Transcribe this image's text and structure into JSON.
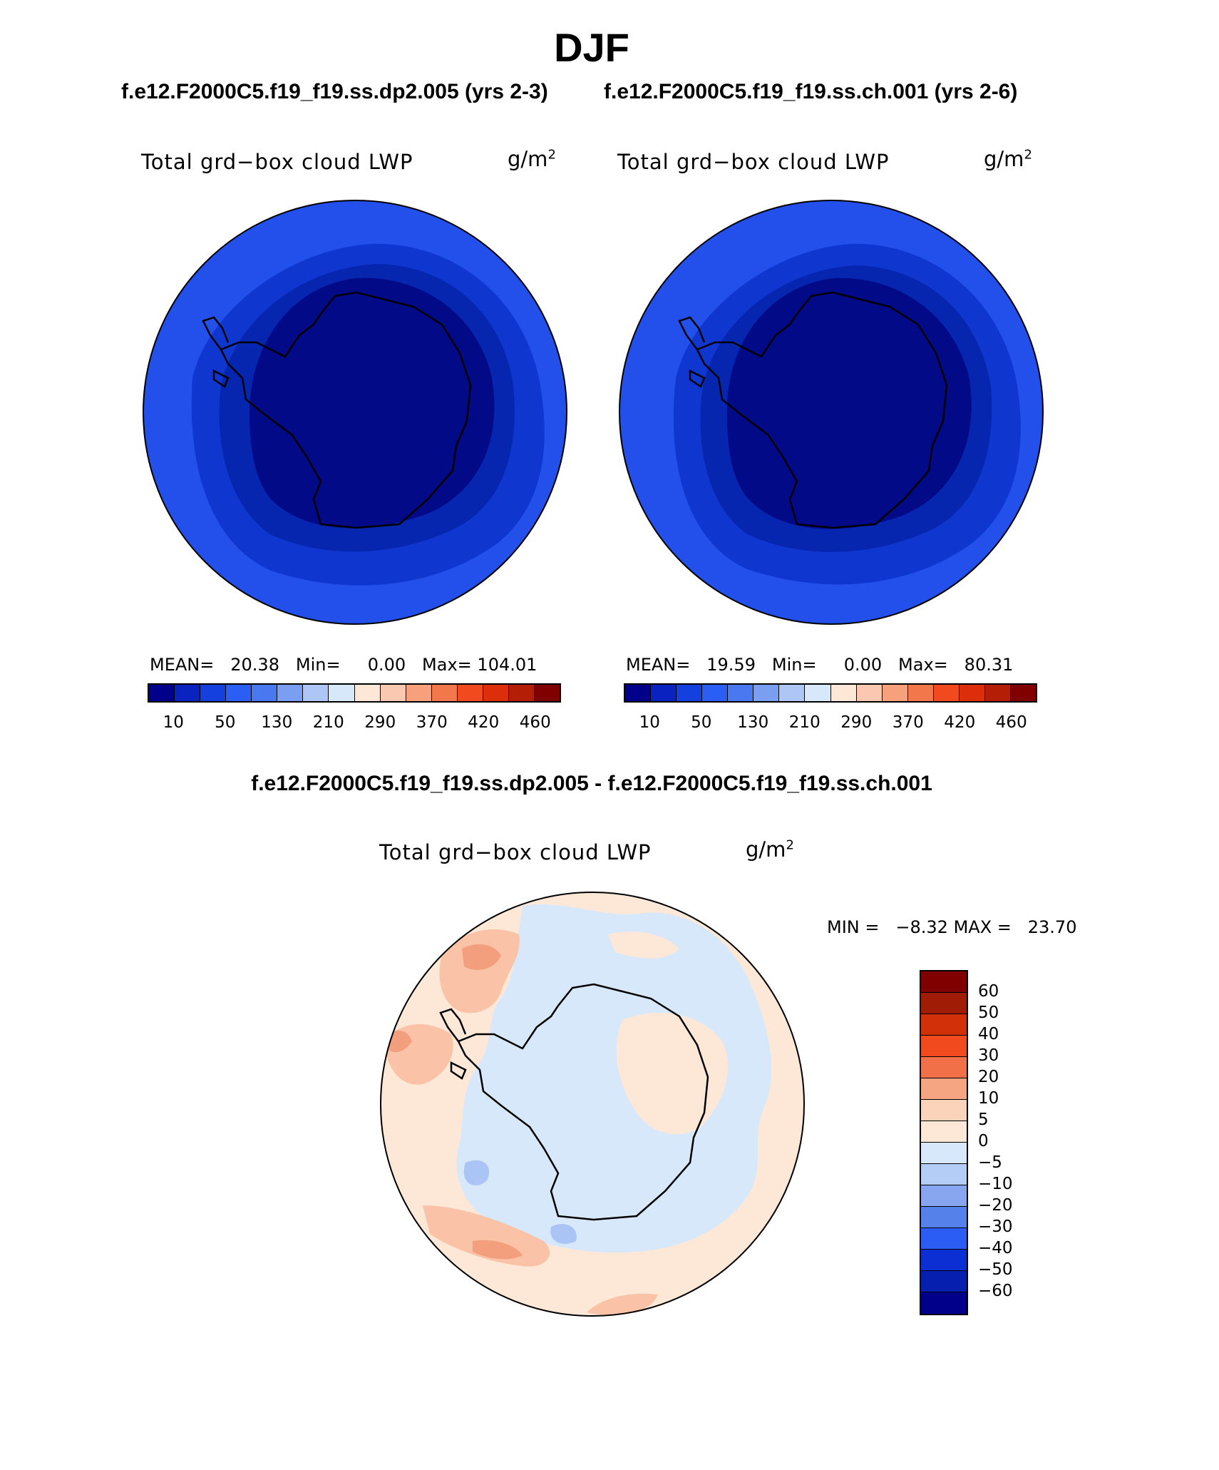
{
  "title": "DJF",
  "subtitles": {
    "left": "f.e12.F2000C5.f19_f19.ss.dp2.005 (yrs 2-3)",
    "right": "f.e12.F2000C5.f19_f19.ss.ch.001 (yrs 2-6)"
  },
  "diff_title": "f.e12.F2000C5.f19_f19.ss.dp2.005 - f.e12.F2000C5.f19_f19.ss.ch.001",
  "panels": [
    {
      "label": "Total grd−box cloud LWP",
      "units": "g/m",
      "units_sup": "2",
      "stats": {
        "mean_label": "MEAN=",
        "mean": "20.38",
        "min_label": "Min=",
        "min": "0.00",
        "max_label": "Max=",
        "max": "104.01"
      }
    },
    {
      "label": "Total grd−box cloud LWP",
      "units": "g/m",
      "units_sup": "2",
      "stats": {
        "mean_label": "MEAN=",
        "mean": "19.59",
        "min_label": "Min=",
        "min": "0.00",
        "max_label": "Max=",
        "max": "80.31"
      }
    },
    {
      "label": "Total grd−box cloud LWP",
      "units": "g/m",
      "units_sup": "2",
      "stats": {
        "min_label": "MIN =",
        "min": "−8.32",
        "max_label": "MAX =",
        "max": "23.70"
      }
    }
  ],
  "abs_colorbar": {
    "colors": [
      "#00008b",
      "#0a23c0",
      "#1540e0",
      "#2a5ef5",
      "#4a78f0",
      "#7a9ef2",
      "#aec6f6",
      "#d7e8fb",
      "#fde8d8",
      "#fac8b0",
      "#f6a07c",
      "#f2784c",
      "#f04a1e",
      "#dc2e0a",
      "#b41e06",
      "#800000"
    ],
    "ticks": [
      "10",
      "50",
      "130",
      "210",
      "290",
      "370",
      "420",
      "460"
    ]
  },
  "diff_colorbar": {
    "colors": [
      "#800000",
      "#a01c04",
      "#d23008",
      "#f04a1e",
      "#f27048",
      "#f5a582",
      "#fbd2ba",
      "#fde8d8",
      "#d7e8fb",
      "#b4cdf6",
      "#88a6ef",
      "#5582ea",
      "#2b5df5",
      "#0c2fd3",
      "#061fae",
      "#00008b"
    ],
    "ticks": [
      "60",
      "50",
      "40",
      "30",
      "20",
      "10",
      "5",
      "0",
      "−5",
      "−10",
      "−20",
      "−30",
      "−40",
      "−50",
      "−60"
    ]
  },
  "map_colors": {
    "abs_outer": "#2350ea",
    "abs_band": "#0f37d0",
    "abs_mid": "#0626b0",
    "abs_inner": "#030a88",
    "diff_pos_light": "#fde8d8",
    "diff_neg_light": "#d7e8fb",
    "diff_pos_mid": "#fac2a6",
    "diff_pos_strong": "#f39f7e",
    "diff_neg_mid": "#aac4f5",
    "coast": "#000000"
  }
}
